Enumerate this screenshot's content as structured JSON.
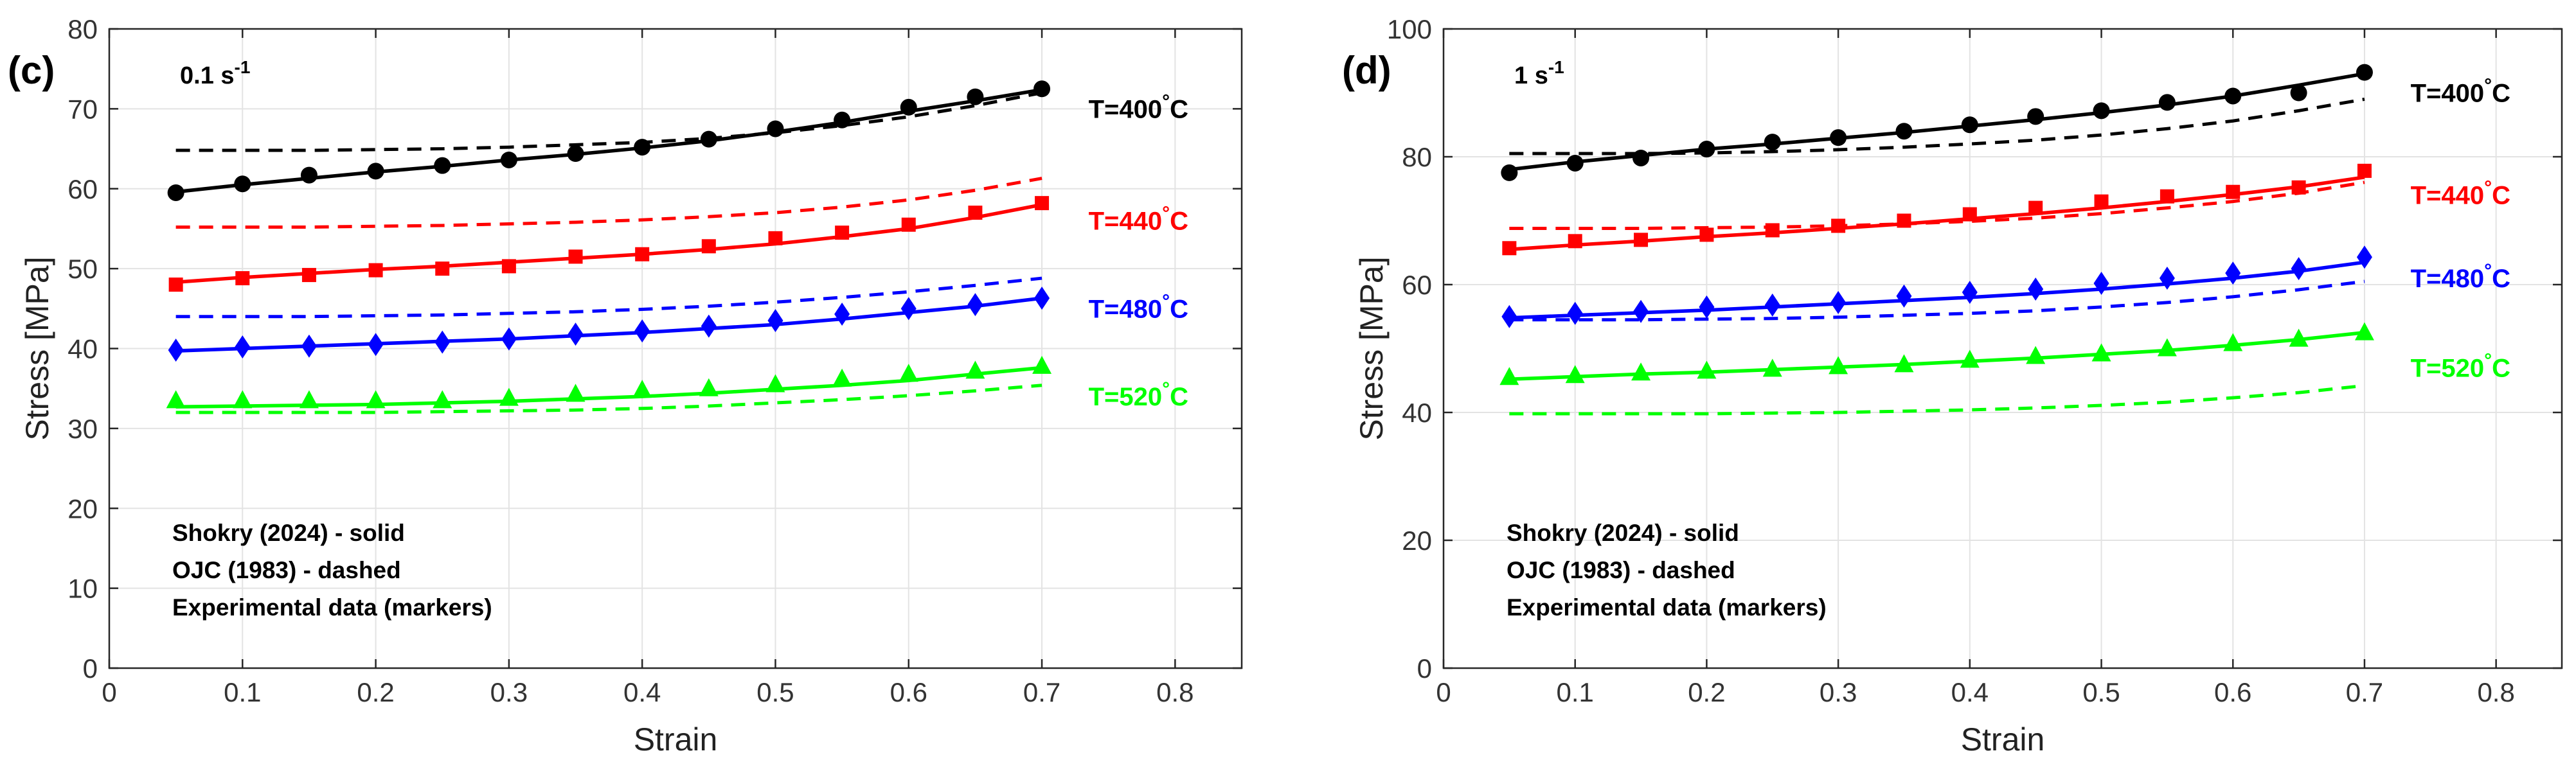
{
  "chart_data": [
    {
      "type": "line",
      "panel_label": "(c)",
      "strain_rate": {
        "base": "0.1 s",
        "exponent": "-1"
      },
      "xlabel": "Strain",
      "ylabel": "Stress [MPa]",
      "xlim": [
        0,
        0.85
      ],
      "ylim": [
        0,
        80
      ],
      "xticks": [
        0,
        0.1,
        0.2,
        0.3,
        0.4,
        0.5,
        0.6,
        0.7,
        0.8
      ],
      "yticks": [
        0,
        10,
        20,
        30,
        40,
        50,
        60,
        70,
        80
      ],
      "grid": true,
      "legend_notes": [
        "Shokry (2024) - solid",
        "OJC (1983) - dashed",
        "Experimental data (markers)"
      ],
      "series": [
        {
          "temperature": "T=400",
          "deg": "°",
          "unit": "C",
          "color": "#000000",
          "marker": "circle",
          "label_y": 70,
          "x": [
            0.05,
            0.1,
            0.15,
            0.2,
            0.25,
            0.3,
            0.35,
            0.4,
            0.45,
            0.5,
            0.55,
            0.6,
            0.65,
            0.7
          ],
          "experimental": [
            59.5,
            60.6,
            61.7,
            62.2,
            62.9,
            63.6,
            64.4,
            65.2,
            66.2,
            67.5,
            68.6,
            70.2,
            71.5,
            72.5
          ],
          "shokry": [
            59.6,
            60.5,
            61.3,
            62.1,
            62.8,
            63.6,
            64.3,
            65.1,
            66.0,
            67.1,
            68.3,
            69.7,
            71.0,
            72.4
          ],
          "ojc": [
            64.8,
            64.8,
            64.8,
            64.9,
            65.0,
            65.2,
            65.5,
            65.8,
            66.3,
            67.0,
            67.9,
            69.0,
            70.4,
            72.0
          ]
        },
        {
          "temperature": "T=440",
          "deg": "°",
          "unit": "C",
          "color": "#ff0000",
          "marker": "square",
          "label_y": 56,
          "x": [
            0.05,
            0.1,
            0.15,
            0.2,
            0.25,
            0.3,
            0.35,
            0.4,
            0.45,
            0.5,
            0.55,
            0.6,
            0.65,
            0.7
          ],
          "experimental": [
            48.0,
            48.8,
            49.2,
            49.8,
            50.0,
            50.3,
            51.5,
            51.8,
            52.8,
            53.8,
            54.5,
            55.5,
            57.0,
            58.2
          ],
          "shokry": [
            48.3,
            48.9,
            49.4,
            49.9,
            50.3,
            50.8,
            51.3,
            51.8,
            52.4,
            53.1,
            54.0,
            55.0,
            56.4,
            58.0
          ],
          "ojc": [
            55.2,
            55.2,
            55.2,
            55.3,
            55.4,
            55.6,
            55.8,
            56.1,
            56.5,
            57.0,
            57.7,
            58.6,
            59.8,
            61.3
          ]
        },
        {
          "temperature": "T=480",
          "deg": "°",
          "unit": "C",
          "color": "#0000ff",
          "marker": "diamond",
          "label_y": 45,
          "x": [
            0.05,
            0.1,
            0.15,
            0.2,
            0.25,
            0.3,
            0.35,
            0.4,
            0.45,
            0.5,
            0.55,
            0.6,
            0.65,
            0.7
          ],
          "experimental": [
            39.8,
            40.2,
            40.3,
            40.5,
            40.8,
            41.2,
            41.8,
            42.2,
            42.8,
            43.5,
            44.3,
            45.0,
            45.5,
            46.3
          ],
          "shokry": [
            39.7,
            40.0,
            40.3,
            40.6,
            40.9,
            41.2,
            41.6,
            42.0,
            42.5,
            43.0,
            43.7,
            44.5,
            45.3,
            46.3
          ],
          "ojc": [
            44.0,
            44.0,
            44.0,
            44.1,
            44.2,
            44.4,
            44.6,
            44.9,
            45.3,
            45.8,
            46.4,
            47.1,
            47.9,
            48.8
          ]
        },
        {
          "temperature": "T=520",
          "deg": "°",
          "unit": "C",
          "color": "#00ff00",
          "marker": "triangle",
          "label_y": 34,
          "x": [
            0.05,
            0.1,
            0.15,
            0.2,
            0.25,
            0.3,
            0.35,
            0.4,
            0.45,
            0.5,
            0.55,
            0.6,
            0.65,
            0.7
          ],
          "experimental": [
            33.5,
            33.5,
            33.5,
            33.5,
            33.5,
            33.8,
            34.3,
            34.8,
            35.0,
            35.5,
            36.2,
            36.8,
            37.2,
            37.8
          ],
          "shokry": [
            32.7,
            32.8,
            32.9,
            33.0,
            33.2,
            33.4,
            33.7,
            34.0,
            34.4,
            34.9,
            35.4,
            36.0,
            36.8,
            37.6
          ],
          "ojc": [
            32.0,
            32.0,
            32.0,
            32.0,
            32.1,
            32.2,
            32.3,
            32.5,
            32.8,
            33.2,
            33.6,
            34.1,
            34.7,
            35.4
          ]
        }
      ]
    },
    {
      "type": "line",
      "panel_label": "(d)",
      "strain_rate": {
        "base": "1 s",
        "exponent": "-1"
      },
      "xlabel": "Strain",
      "ylabel": "Stress [MPa]",
      "xlim": [
        0,
        0.85
      ],
      "ylim": [
        0,
        100
      ],
      "xticks": [
        0,
        0.1,
        0.2,
        0.3,
        0.4,
        0.5,
        0.6,
        0.7,
        0.8
      ],
      "yticks": [
        0,
        20,
        40,
        60,
        80,
        100
      ],
      "grid": true,
      "legend_notes": [
        "Shokry (2024) - solid",
        "OJC (1983) - dashed",
        "Experimental data (markers)"
      ],
      "series": [
        {
          "temperature": "T=400",
          "deg": "°",
          "unit": "C",
          "color": "#000000",
          "marker": "circle",
          "label_y": 90,
          "x": [
            0.05,
            0.1,
            0.15,
            0.2,
            0.25,
            0.3,
            0.35,
            0.4,
            0.45,
            0.5,
            0.55,
            0.6,
            0.65,
            0.7
          ],
          "experimental": [
            77.5,
            79.0,
            79.8,
            81.2,
            82.3,
            83.0,
            84.0,
            85.0,
            86.3,
            87.2,
            88.5,
            89.5,
            90.0,
            93.2
          ],
          "shokry": [
            78.0,
            79.2,
            80.2,
            81.2,
            82.0,
            82.9,
            83.8,
            84.8,
            85.8,
            86.9,
            88.1,
            89.5,
            91.2,
            93.0
          ],
          "ojc": [
            80.5,
            80.5,
            80.5,
            80.6,
            80.8,
            81.1,
            81.5,
            82.0,
            82.6,
            83.4,
            84.4,
            85.6,
            87.2,
            89.0
          ]
        },
        {
          "temperature": "T=440",
          "deg": "°",
          "unit": "C",
          "color": "#ff0000",
          "marker": "square",
          "label_y": 74,
          "x": [
            0.05,
            0.1,
            0.15,
            0.2,
            0.25,
            0.3,
            0.35,
            0.4,
            0.45,
            0.5,
            0.55,
            0.6,
            0.65,
            0.7
          ],
          "experimental": [
            65.7,
            66.8,
            67.0,
            67.8,
            68.5,
            69.2,
            70.0,
            71.0,
            72.0,
            73.0,
            73.8,
            74.5,
            75.2,
            77.8
          ],
          "shokry": [
            65.5,
            66.2,
            66.8,
            67.5,
            68.1,
            68.8,
            69.5,
            70.3,
            71.1,
            72.0,
            73.0,
            74.1,
            75.3,
            76.8
          ],
          "ojc": [
            68.8,
            68.8,
            68.8,
            68.9,
            69.0,
            69.2,
            69.5,
            69.9,
            70.4,
            71.1,
            72.0,
            73.0,
            74.3,
            76.0
          ]
        },
        {
          "temperature": "T=480",
          "deg": "°",
          "unit": "C",
          "color": "#0000ff",
          "marker": "diamond",
          "label_y": 61,
          "x": [
            0.05,
            0.1,
            0.15,
            0.2,
            0.25,
            0.3,
            0.35,
            0.4,
            0.45,
            0.5,
            0.55,
            0.6,
            0.65,
            0.7
          ],
          "experimental": [
            55.0,
            55.5,
            55.8,
            56.5,
            56.8,
            57.2,
            58.2,
            58.8,
            59.3,
            60.2,
            61.0,
            61.8,
            62.5,
            64.3
          ],
          "shokry": [
            54.8,
            55.2,
            55.6,
            56.0,
            56.5,
            57.0,
            57.5,
            58.0,
            58.6,
            59.3,
            60.1,
            61.0,
            62.1,
            63.5
          ],
          "ojc": [
            54.5,
            54.5,
            54.5,
            54.6,
            54.7,
            54.9,
            55.2,
            55.5,
            55.9,
            56.5,
            57.2,
            58.1,
            59.2,
            60.5
          ]
        },
        {
          "temperature": "T=520",
          "deg": "°",
          "unit": "C",
          "color": "#00ff00",
          "marker": "triangle",
          "label_y": 47,
          "x": [
            0.05,
            0.1,
            0.15,
            0.2,
            0.25,
            0.3,
            0.35,
            0.4,
            0.45,
            0.5,
            0.55,
            0.6,
            0.65,
            0.7
          ],
          "experimental": [
            45.5,
            45.8,
            46.2,
            46.5,
            46.8,
            47.2,
            47.5,
            48.2,
            48.8,
            49.2,
            50.0,
            50.8,
            51.5,
            52.5
          ],
          "shokry": [
            45.2,
            45.6,
            46.0,
            46.3,
            46.7,
            47.1,
            47.5,
            48.0,
            48.5,
            49.1,
            49.7,
            50.5,
            51.4,
            52.5
          ],
          "ojc": [
            39.8,
            39.8,
            39.8,
            39.8,
            39.9,
            40.0,
            40.2,
            40.4,
            40.7,
            41.1,
            41.6,
            42.3,
            43.1,
            44.2
          ]
        }
      ]
    }
  ]
}
